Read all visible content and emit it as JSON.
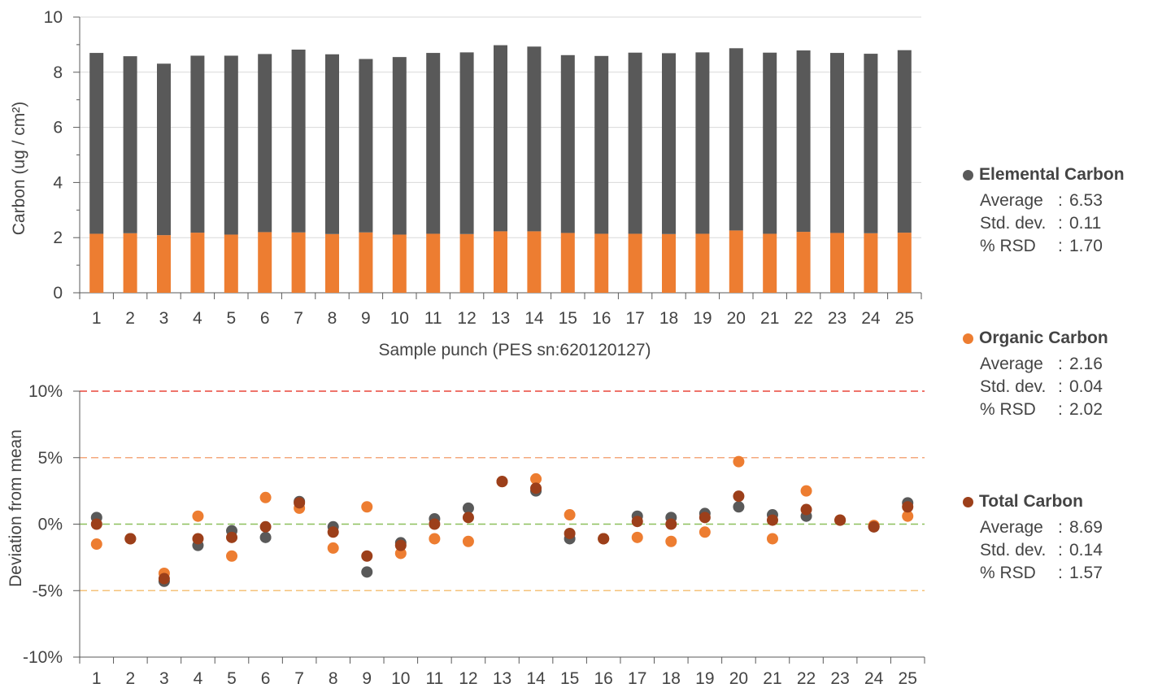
{
  "chart_data": [
    {
      "type": "bar",
      "stacked": true,
      "categories": [
        "1",
        "2",
        "3",
        "4",
        "5",
        "6",
        "7",
        "8",
        "9",
        "10",
        "11",
        "12",
        "13",
        "14",
        "15",
        "16",
        "17",
        "18",
        "19",
        "20",
        "21",
        "22",
        "23",
        "24",
        "25"
      ],
      "series": [
        {
          "name": "Organic Carbon",
          "color": "#ED7D31",
          "values": [
            2.14,
            2.16,
            2.09,
            2.18,
            2.11,
            2.2,
            2.19,
            2.13,
            2.19,
            2.11,
            2.14,
            2.13,
            2.23,
            2.23,
            2.17,
            2.14,
            2.14,
            2.13,
            2.14,
            2.26,
            2.14,
            2.21,
            2.17,
            2.16,
            2.18
          ]
        },
        {
          "name": "Elemental Carbon",
          "color": "#595959",
          "values": [
            6.56,
            6.42,
            6.22,
            6.42,
            6.49,
            6.46,
            6.63,
            6.52,
            6.29,
            6.44,
            6.56,
            6.59,
            6.75,
            6.7,
            6.45,
            6.45,
            6.57,
            6.56,
            6.58,
            6.61,
            6.57,
            6.58,
            6.53,
            6.51,
            6.62
          ]
        }
      ],
      "xlabel": "Sample punch (PES sn:620120127)",
      "ylabel": "Carbon  (ug / cm²)",
      "ylim": [
        0,
        10
      ],
      "yticks": [
        0,
        2,
        4,
        6,
        8,
        10
      ],
      "grid": true
    },
    {
      "type": "scatter",
      "x": [
        "1",
        "2",
        "3",
        "4",
        "5",
        "6",
        "7",
        "8",
        "9",
        "10",
        "11",
        "12",
        "13",
        "14",
        "15",
        "16",
        "17",
        "18",
        "19",
        "20",
        "21",
        "22",
        "23",
        "24",
        "25"
      ],
      "series": [
        {
          "name": "Elemental Carbon",
          "color": "#595959",
          "values": [
            0.5,
            -1.1,
            -4.3,
            -1.6,
            -0.5,
            -1.0,
            1.7,
            -0.2,
            -3.6,
            -1.4,
            0.4,
            1.2,
            3.2,
            2.5,
            -1.1,
            -1.1,
            0.6,
            0.5,
            0.8,
            1.3,
            0.7,
            0.6,
            0.3,
            -0.2,
            1.6
          ]
        },
        {
          "name": "Organic Carbon",
          "color": "#ED7D31",
          "values": [
            -1.5,
            -1.1,
            -3.7,
            0.6,
            -2.4,
            2.0,
            1.2,
            -1.8,
            1.3,
            -2.2,
            -1.1,
            -1.3,
            3.2,
            3.4,
            0.7,
            -1.1,
            -1.0,
            -1.3,
            -0.6,
            4.7,
            -1.1,
            2.5,
            0.3,
            -0.1,
            0.6
          ]
        },
        {
          "name": "Total Carbon",
          "color": "#9C3F1A",
          "values": [
            0.0,
            -1.1,
            -4.1,
            -1.1,
            -1.0,
            -0.2,
            1.6,
            -0.6,
            -2.4,
            -1.6,
            0.0,
            0.5,
            3.2,
            2.7,
            -0.7,
            -1.1,
            0.2,
            0.0,
            0.5,
            2.1,
            0.3,
            1.1,
            0.3,
            -0.2,
            1.3
          ]
        }
      ],
      "xlabel": "",
      "ylabel": "Deviation from mean",
      "ylim": [
        -10,
        10
      ],
      "yticks": [
        "-10%",
        "-5%",
        "0%",
        "5%",
        "10%"
      ],
      "reference_lines": [
        {
          "y": 10,
          "color": "#E8473A"
        },
        {
          "y": 5,
          "color": "#F4A97E"
        },
        {
          "y": 0,
          "color": "#8DBF5C"
        },
        {
          "y": -5,
          "color": "#F5C27A"
        }
      ]
    }
  ],
  "legend": [
    {
      "name": "Elemental Carbon",
      "color": "#595959",
      "stats": [
        {
          "label": "Average",
          "value": "6.53"
        },
        {
          "label": "Std. dev.",
          "value": "0.11"
        },
        {
          "label": "% RSD",
          "value": "1.70"
        }
      ]
    },
    {
      "name": "Organic Carbon",
      "color": "#ED7D31",
      "stats": [
        {
          "label": "Average",
          "value": "2.16"
        },
        {
          "label": "Std. dev.",
          "value": "0.04"
        },
        {
          "label": "% RSD",
          "value": "2.02"
        }
      ]
    },
    {
      "name": "Total Carbon",
      "color": "#9C3F1A",
      "stats": [
        {
          "label": "Average",
          "value": "8.69"
        },
        {
          "label": "Std. dev.",
          "value": "0.14"
        },
        {
          "label": "% RSD",
          "value": "1.57"
        }
      ]
    }
  ]
}
